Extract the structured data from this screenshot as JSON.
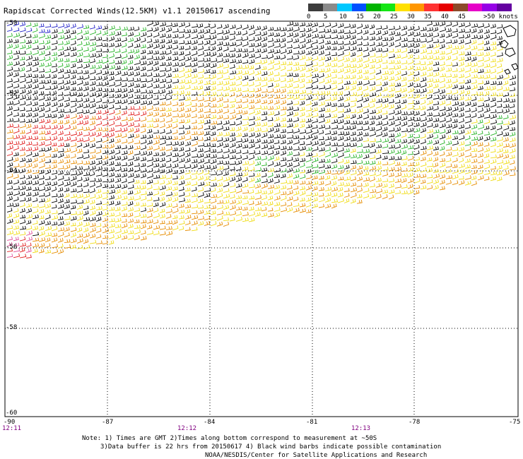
{
  "title": "Rapidscat Corrected Winds(12.5KM) v1.1 20150617 ascending",
  "scale": {
    "colors": [
      "#3c3c3c",
      "#8a8a8a",
      "#00c8ff",
      "#0050ff",
      "#00b400",
      "#14e614",
      "#ffe000",
      "#ff9600",
      "#ff3232",
      "#e60000",
      "#8c4a2a",
      "#e600c8",
      "#9600e6",
      "#6400a0"
    ],
    "ticks": [
      "0",
      "5",
      "10",
      "15",
      "20",
      "25",
      "30",
      "35",
      "40",
      "45",
      ">50 knots"
    ]
  },
  "axes": {
    "lat_labels": [
      "-50",
      "-52",
      "-54",
      "-56",
      "-58",
      "-60"
    ],
    "lon_labels": [
      "-90",
      "-87",
      "-84",
      "-81",
      "-78",
      "-75"
    ]
  },
  "times": [
    "12:11",
    "12:12",
    "12:13"
  ],
  "notes": {
    "line1": "Note: 1) Times are GMT 2)Times along bottom correspond to measurement at ~50S",
    "line2": "3)Data buffer is 22 hrs from 20150617 4) Black wind barbs indicate possible contamination",
    "line3": "NOAA/NESDIS/Center for Satellite Applications and Research"
  },
  "wind_colors": {
    "contaminated": "#000000",
    "blue": "#2020c8",
    "green": "#28b428",
    "yellow": "#f0dc14",
    "orange": "#e68c00",
    "red": "#e01e1e",
    "magenta": "#e0509a"
  },
  "land_color": "#000000"
}
